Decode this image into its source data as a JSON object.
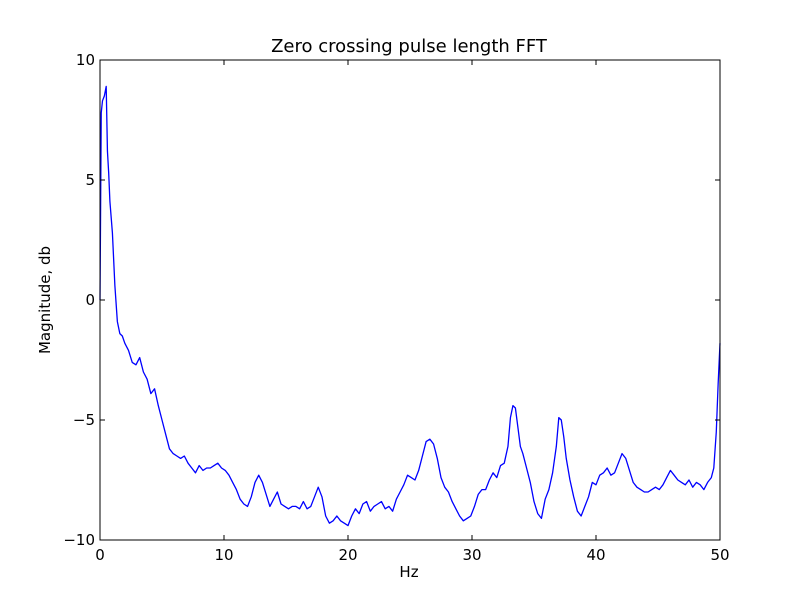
{
  "chart_data": {
    "type": "line",
    "title": "Zero crossing pulse length FFT",
    "xlabel": "Hz",
    "ylabel": "Magnitude, db",
    "xlim": [
      0,
      50
    ],
    "ylim": [
      -10,
      10
    ],
    "xticks": [
      0,
      10,
      20,
      30,
      40,
      50
    ],
    "yticks": [
      -10,
      -5,
      0,
      5,
      10
    ],
    "ytick_labels": [
      "−10",
      "−5",
      "0",
      "5",
      "10"
    ],
    "grid": false,
    "colors": {
      "line": "#0000ff",
      "axes": "#000000",
      "background": "#ffffff"
    },
    "series": [
      {
        "x": [
          0,
          0.1,
          0.2,
          0.35,
          0.5,
          0.6,
          0.7,
          0.8,
          1.0,
          1.2,
          1.4,
          1.6,
          1.8,
          2.0,
          2.3,
          2.6,
          2.9,
          3.2,
          3.5,
          3.8,
          4.1,
          4.4,
          4.7,
          5.0,
          5.3,
          5.6,
          5.9,
          6.2,
          6.5,
          6.8,
          7.1,
          7.4,
          7.7,
          8.0,
          8.3,
          8.6,
          8.9,
          9.2,
          9.5,
          9.8,
          10.1,
          10.4,
          10.7,
          11.0,
          11.3,
          11.6,
          11.9,
          12.2,
          12.5,
          12.8,
          13.1,
          13.4,
          13.7,
          14.0,
          14.3,
          14.6,
          14.9,
          15.2,
          15.5,
          15.8,
          16.1,
          16.4,
          16.7,
          17.0,
          17.3,
          17.6,
          17.9,
          18.2,
          18.5,
          18.8,
          19.1,
          19.4,
          19.7,
          20.0,
          20.3,
          20.6,
          20.9,
          21.2,
          21.5,
          21.8,
          22.1,
          22.4,
          22.7,
          23.0,
          23.3,
          23.6,
          23.9,
          24.2,
          24.5,
          24.8,
          25.1,
          25.4,
          25.7,
          26.0,
          26.3,
          26.6,
          26.9,
          27.2,
          27.5,
          27.8,
          28.1,
          28.4,
          28.7,
          29.0,
          29.3,
          29.6,
          29.9,
          30.2,
          30.5,
          30.8,
          31.1,
          31.4,
          31.7,
          32.0,
          32.3,
          32.6,
          32.9,
          33.1,
          33.3,
          33.5,
          33.7,
          33.9,
          34.1,
          34.4,
          34.7,
          35.0,
          35.3,
          35.6,
          35.9,
          36.2,
          36.5,
          36.8,
          37.0,
          37.2,
          37.4,
          37.6,
          37.9,
          38.2,
          38.5,
          38.8,
          39.1,
          39.4,
          39.7,
          40.0,
          40.3,
          40.6,
          40.9,
          41.2,
          41.5,
          41.8,
          42.1,
          42.4,
          42.7,
          43.0,
          43.3,
          43.6,
          43.9,
          44.2,
          44.5,
          44.8,
          45.1,
          45.4,
          45.7,
          46.0,
          46.3,
          46.6,
          46.9,
          47.2,
          47.5,
          47.8,
          48.1,
          48.4,
          48.7,
          49.0,
          49.3,
          49.5,
          49.7,
          49.85,
          50.0
        ],
        "values": [
          0,
          7.8,
          8.3,
          8.5,
          8.9,
          6.2,
          5.3,
          4.1,
          2.8,
          0.6,
          -0.9,
          -1.4,
          -1.5,
          -1.8,
          -2.1,
          -2.6,
          -2.7,
          -2.4,
          -3.0,
          -3.3,
          -3.9,
          -3.7,
          -4.4,
          -5.0,
          -5.6,
          -6.2,
          -6.4,
          -6.5,
          -6.6,
          -6.5,
          -6.8,
          -7.0,
          -7.2,
          -6.9,
          -7.1,
          -7.0,
          -7.0,
          -6.9,
          -6.8,
          -7.0,
          -7.1,
          -7.3,
          -7.6,
          -7.9,
          -8.3,
          -8.5,
          -8.6,
          -8.2,
          -7.6,
          -7.3,
          -7.6,
          -8.1,
          -8.6,
          -8.3,
          -8.0,
          -8.5,
          -8.6,
          -8.7,
          -8.6,
          -8.6,
          -8.7,
          -8.4,
          -8.7,
          -8.6,
          -8.2,
          -7.8,
          -8.2,
          -9.0,
          -9.3,
          -9.2,
          -9.0,
          -9.2,
          -9.3,
          -9.4,
          -9.0,
          -8.7,
          -8.9,
          -8.5,
          -8.4,
          -8.8,
          -8.6,
          -8.5,
          -8.4,
          -8.7,
          -8.6,
          -8.8,
          -8.3,
          -8.0,
          -7.7,
          -7.3,
          -7.4,
          -7.5,
          -7.1,
          -6.5,
          -5.9,
          -5.8,
          -6.0,
          -6.6,
          -7.4,
          -7.8,
          -8.0,
          -8.4,
          -8.7,
          -9.0,
          -9.2,
          -9.1,
          -9.0,
          -8.6,
          -8.1,
          -7.9,
          -7.9,
          -7.5,
          -7.2,
          -7.4,
          -6.9,
          -6.8,
          -6.1,
          -4.9,
          -4.4,
          -4.5,
          -5.3,
          -6.1,
          -6.4,
          -7.0,
          -7.6,
          -8.4,
          -8.9,
          -9.1,
          -8.3,
          -7.9,
          -7.2,
          -6.1,
          -4.9,
          -5.0,
          -5.7,
          -6.6,
          -7.5,
          -8.2,
          -8.8,
          -9.0,
          -8.6,
          -8.2,
          -7.6,
          -7.7,
          -7.3,
          -7.2,
          -7.0,
          -7.3,
          -7.2,
          -6.8,
          -6.4,
          -6.6,
          -7.1,
          -7.6,
          -7.8,
          -7.9,
          -8.0,
          -8.0,
          -7.9,
          -7.8,
          -7.9,
          -7.7,
          -7.4,
          -7.1,
          -7.3,
          -7.5,
          -7.6,
          -7.7,
          -7.5,
          -7.8,
          -7.6,
          -7.7,
          -7.9,
          -7.6,
          -7.4,
          -7.0,
          -5.5,
          -3.5,
          -1.8
        ]
      }
    ]
  }
}
